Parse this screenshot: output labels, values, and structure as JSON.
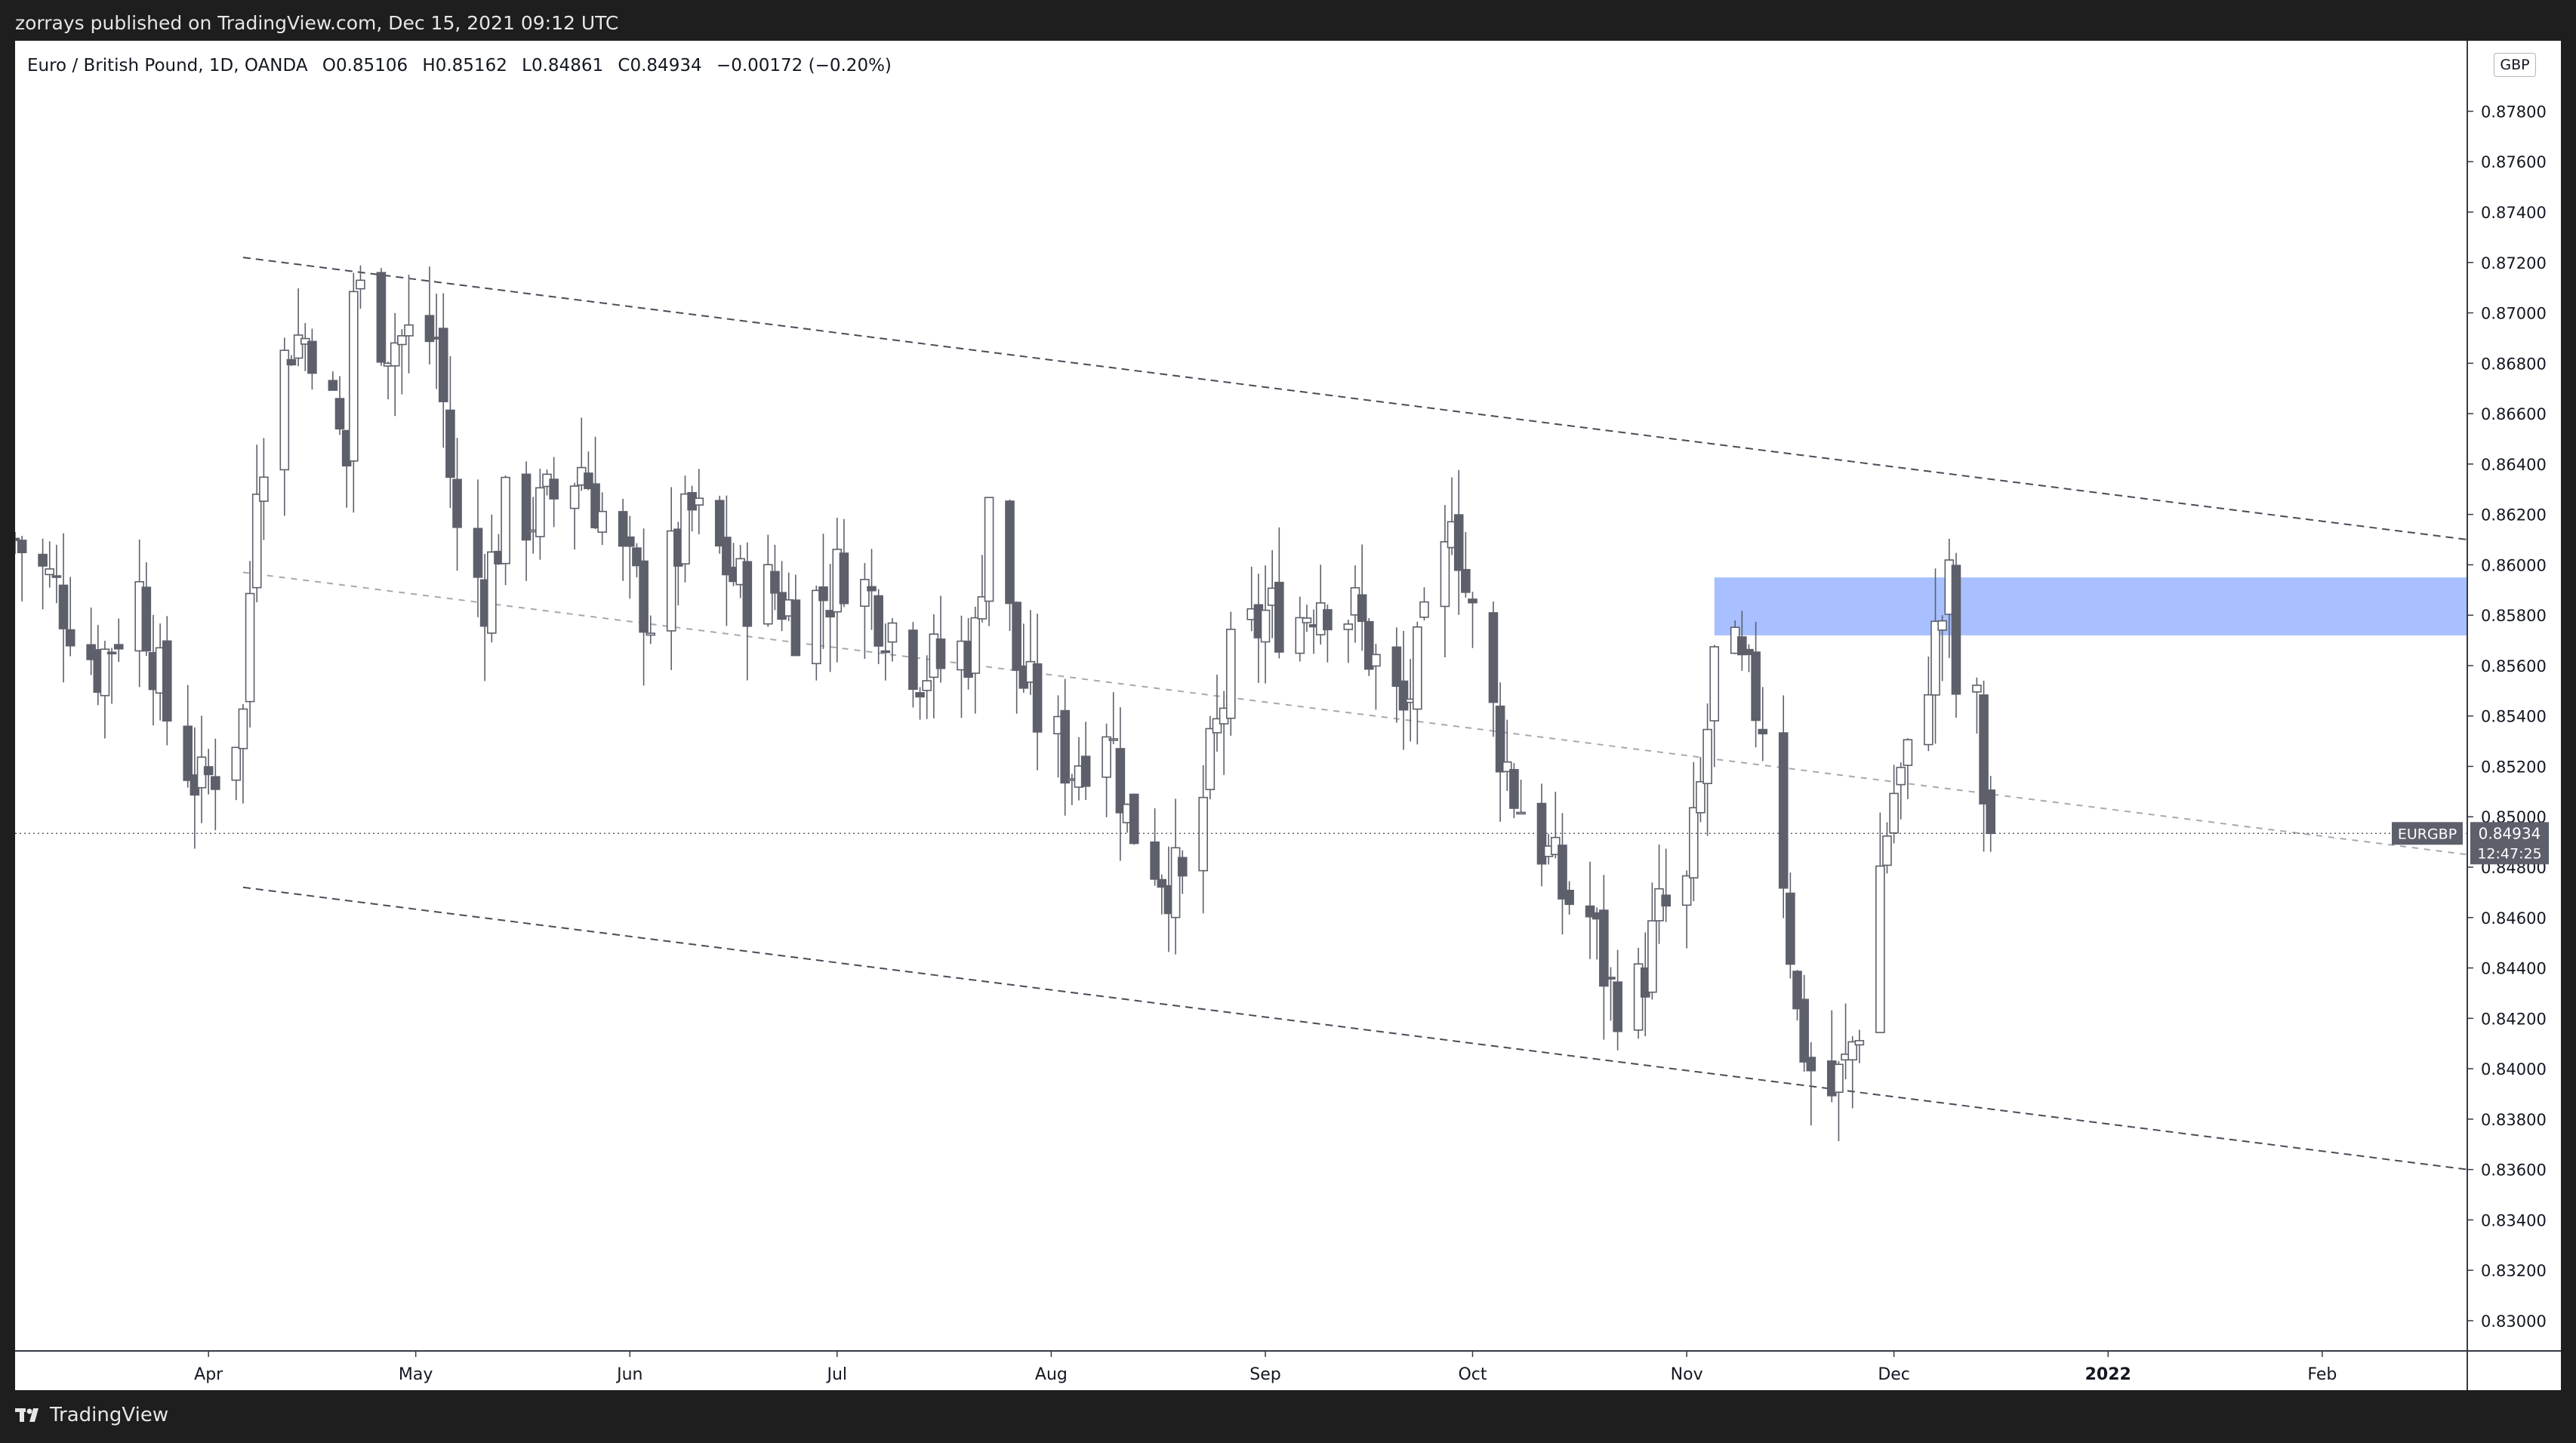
{
  "header": {
    "publish_line": "zorrays published on TradingView.com, Dec 15, 2021 09:12 UTC"
  },
  "symbol": {
    "name": "Euro / British Pound, 1D, OANDA",
    "o_label": "O",
    "o_value": "0.85106",
    "h_label": "H",
    "h_value": "0.85162",
    "l_label": "L",
    "l_value": "0.84861",
    "c_label": "C",
    "c_value": "0.84934",
    "change": "−0.00172 (−0.20%)"
  },
  "currency_badge": "GBP",
  "price_tag": {
    "ticker": "EURGBP",
    "price": "0.84934",
    "countdown": "12:47:25"
  },
  "footer": {
    "brand": "TradingView",
    "logo_icon": "tradingview-logo-icon"
  },
  "colors": {
    "background": "#1e1e1e",
    "chart_background": "#ffffff",
    "candle_down": "#5d606b",
    "candle_up_fill": "#ffffff",
    "candle_outline": "#5d606b",
    "zone_fill": "#9fb9ff",
    "price_tag_bg": "#5d606b",
    "trendline": "#474d57"
  },
  "chart_data": {
    "type": "candlestick",
    "title": "Euro / British Pound, 1D, OANDA",
    "y_axis": {
      "side": "right",
      "range": [
        0.8288,
        0.8808
      ],
      "ticks": [
        0.83,
        0.832,
        0.834,
        0.836,
        0.838,
        0.84,
        0.842,
        0.844,
        0.846,
        0.848,
        0.85,
        0.852,
        0.854,
        0.856,
        0.858,
        0.86,
        0.862,
        0.864,
        0.866,
        0.868,
        0.87,
        0.872,
        0.874,
        0.876,
        0.878
      ],
      "tick_labels": [
        "0.83000",
        "0.83200",
        "0.83400",
        "0.83600",
        "0.83800",
        "0.84000",
        "0.84200",
        "0.84400",
        "0.84600",
        "0.84800",
        "0.85000",
        "0.85200",
        "0.85400",
        "0.85600",
        "0.85800",
        "0.86000",
        "0.86200",
        "0.86400",
        "0.86600",
        "0.86800",
        "0.87000",
        "0.87200",
        "0.87400",
        "0.87600",
        "0.87800"
      ]
    },
    "x_axis": {
      "range": [
        "2021-03-04",
        "2022-02-22"
      ],
      "ticks": [
        {
          "date": "2021-04-01",
          "label": "Apr"
        },
        {
          "date": "2021-05-01",
          "label": "May"
        },
        {
          "date": "2021-06-01",
          "label": "Jun"
        },
        {
          "date": "2021-07-01",
          "label": "Jul"
        },
        {
          "date": "2021-08-01",
          "label": "Aug"
        },
        {
          "date": "2021-09-01",
          "label": "Sep"
        },
        {
          "date": "2021-10-01",
          "label": "Oct"
        },
        {
          "date": "2021-11-01",
          "label": "Nov"
        },
        {
          "date": "2021-12-01",
          "label": "Dec"
        },
        {
          "date": "2022-01-01",
          "label": "2022"
        },
        {
          "date": "2022-02-01",
          "label": "Feb"
        }
      ]
    },
    "last_price": 0.84934,
    "ohlc_last": {
      "date": "2021-12-15",
      "open": 0.85106,
      "high": 0.85162,
      "low": 0.84861,
      "close": 0.84934
    },
    "closes": [
      [
        "2021-03-04",
        0.861
      ],
      [
        "2021-03-10",
        0.859
      ],
      [
        "2021-03-16",
        0.856
      ],
      [
        "2021-03-22",
        0.859
      ],
      [
        "2021-03-26",
        0.854
      ],
      [
        "2021-03-31",
        0.851
      ],
      [
        "2021-04-06",
        0.854
      ],
      [
        "2021-04-08",
        0.864
      ],
      [
        "2021-04-13",
        0.869
      ],
      [
        "2021-04-16",
        0.869
      ],
      [
        "2021-04-21",
        0.864
      ],
      [
        "2021-04-22",
        0.871
      ],
      [
        "2021-04-27",
        0.869
      ],
      [
        "2021-05-04",
        0.869
      ],
      [
        "2021-05-07",
        0.861
      ],
      [
        "2021-05-11",
        0.859
      ],
      [
        "2021-05-14",
        0.862
      ],
      [
        "2021-05-19",
        0.862
      ],
      [
        "2021-05-25",
        0.864
      ],
      [
        "2021-05-31",
        0.86
      ],
      [
        "2021-06-04",
        0.858
      ],
      [
        "2021-06-10",
        0.862
      ],
      [
        "2021-06-15",
        0.86
      ],
      [
        "2021-06-17",
        0.859
      ],
      [
        "2021-06-22",
        0.859
      ],
      [
        "2021-06-25",
        0.858
      ],
      [
        "2021-06-30",
        0.859
      ],
      [
        "2021-07-02",
        0.86
      ],
      [
        "2021-07-08",
        0.858
      ],
      [
        "2021-07-13",
        0.856
      ],
      [
        "2021-07-16",
        0.856
      ],
      [
        "2021-07-21",
        0.857
      ],
      [
        "2021-07-23",
        0.863
      ],
      [
        "2021-07-27",
        0.856
      ],
      [
        "2021-07-30",
        0.854
      ],
      [
        "2021-08-04",
        0.852
      ],
      [
        "2021-08-09",
        0.854
      ],
      [
        "2021-08-12",
        0.85
      ],
      [
        "2021-08-17",
        0.848
      ],
      [
        "2021-08-20",
        0.847
      ],
      [
        "2021-08-24",
        0.852
      ],
      [
        "2021-08-27",
        0.856
      ],
      [
        "2021-09-01",
        0.858
      ],
      [
        "2021-09-06",
        0.858
      ],
      [
        "2021-09-09",
        0.859
      ],
      [
        "2021-09-14",
        0.858
      ],
      [
        "2021-09-17",
        0.856
      ],
      [
        "2021-09-21",
        0.854
      ],
      [
        "2021-09-23",
        0.856
      ],
      [
        "2021-09-27",
        0.86
      ],
      [
        "2021-09-28",
        0.863
      ],
      [
        "2021-09-30",
        0.859
      ],
      [
        "2021-10-04",
        0.854
      ],
      [
        "2021-10-07",
        0.851
      ],
      [
        "2021-10-11",
        0.849
      ],
      [
        "2021-10-14",
        0.847
      ],
      [
        "2021-10-18",
        0.846
      ],
      [
        "2021-10-21",
        0.843
      ],
      [
        "2021-10-25",
        0.843
      ],
      [
        "2021-10-28",
        0.846
      ],
      [
        "2021-11-01",
        0.847
      ],
      [
        "2021-11-03",
        0.851
      ],
      [
        "2021-11-05",
        0.856
      ],
      [
        "2021-11-08",
        0.856
      ],
      [
        "2021-11-10",
        0.855
      ],
      [
        "2021-11-12",
        0.854
      ],
      [
        "2021-11-15",
        0.848
      ],
      [
        "2021-11-17",
        0.842
      ],
      [
        "2021-11-19",
        0.84
      ],
      [
        "2021-11-22",
        0.839
      ],
      [
        "2021-11-24",
        0.84
      ],
      [
        "2021-11-26",
        0.842
      ],
      [
        "2021-11-29",
        0.848
      ],
      [
        "2021-12-01",
        0.851
      ],
      [
        "2021-12-03",
        0.852
      ],
      [
        "2021-12-06",
        0.856
      ],
      [
        "2021-12-08",
        0.858
      ],
      [
        "2021-12-09",
        0.859
      ],
      [
        "2021-12-10",
        0.855
      ],
      [
        "2021-12-13",
        0.854
      ],
      [
        "2021-12-14",
        0.851
      ],
      [
        "2021-12-15",
        0.84934
      ]
    ],
    "trendlines": [
      {
        "name": "upper-channel",
        "style": "dashed",
        "from": [
          "2021-04-06",
          0.8722
        ],
        "to": [
          "2022-02-22",
          0.861
        ]
      },
      {
        "name": "middle-channel",
        "style": "dashed-light",
        "from": [
          "2021-04-06",
          0.8597
        ],
        "to": [
          "2022-02-22",
          0.8485
        ]
      },
      {
        "name": "lower-channel",
        "style": "dashed",
        "from": [
          "2021-04-06",
          0.8472
        ],
        "to": [
          "2022-02-22",
          0.836
        ]
      }
    ],
    "zones": [
      {
        "name": "supply-zone",
        "from_date": "2021-11-05",
        "to_date": "2022-02-22",
        "low": 0.8572,
        "high": 0.8595,
        "color": "#9fb9ff"
      }
    ],
    "legend": "none",
    "grid": false
  }
}
